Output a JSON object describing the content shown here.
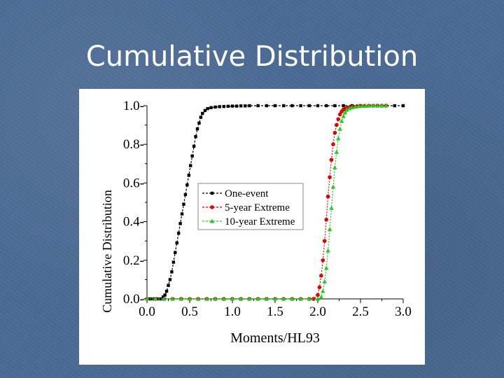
{
  "slide": {
    "title": "Cumulative Distribution"
  },
  "colors": {
    "background": "#4b6b95",
    "one_event": "#000000",
    "five_year": "#e00000",
    "ten_year": "#22cc22"
  },
  "chart_data": {
    "type": "line",
    "title": "",
    "xlabel": "Moments/HL93",
    "ylabel": "Cumulative Distribution",
    "xlim": [
      0.0,
      3.0
    ],
    "ylim": [
      0.0,
      1.0
    ],
    "xticks": [
      "0.0",
      "0.5",
      "1.0",
      "1.5",
      "2.0",
      "2.5",
      "3.0"
    ],
    "yticks": [
      "0.0",
      "0.2",
      "0.4",
      "0.6",
      "0.8",
      "1.0"
    ],
    "grid": false,
    "legend_position": "center",
    "series": [
      {
        "name": "One-event",
        "marker": "square",
        "color": "#000000",
        "x": [
          0.0,
          0.04,
          0.08,
          0.12,
          0.16,
          0.19,
          0.21,
          0.23,
          0.25,
          0.27,
          0.29,
          0.31,
          0.33,
          0.35,
          0.37,
          0.39,
          0.41,
          0.43,
          0.45,
          0.47,
          0.49,
          0.51,
          0.53,
          0.55,
          0.57,
          0.59,
          0.61,
          0.63,
          0.65,
          0.68,
          0.71,
          0.75,
          0.8,
          0.85,
          0.9,
          0.95,
          1.0,
          1.05,
          1.1,
          1.15,
          1.2,
          1.3,
          1.4,
          1.5,
          1.6,
          1.7,
          1.8,
          1.9,
          2.0,
          2.1,
          2.2,
          2.3,
          2.4,
          2.5,
          2.6,
          2.7,
          2.8,
          2.9,
          3.0
        ],
        "y": [
          0.0,
          0.0,
          0.0,
          0.0,
          0.0,
          0.01,
          0.02,
          0.04,
          0.07,
          0.1,
          0.14,
          0.19,
          0.24,
          0.29,
          0.34,
          0.39,
          0.44,
          0.49,
          0.54,
          0.59,
          0.64,
          0.69,
          0.74,
          0.79,
          0.84,
          0.88,
          0.91,
          0.94,
          0.96,
          0.975,
          0.985,
          0.99,
          0.993,
          0.995,
          0.996,
          0.997,
          0.998,
          0.998,
          0.999,
          0.999,
          1.0,
          1.0,
          1.0,
          1.0,
          1.0,
          1.0,
          1.0,
          1.0,
          1.0,
          1.0,
          1.0,
          1.0,
          1.0,
          1.0,
          1.0,
          1.0,
          1.0,
          1.0,
          1.0
        ]
      },
      {
        "name": "5-year Extreme",
        "marker": "circle",
        "color": "#e00000",
        "x": [
          0.0,
          0.1,
          0.2,
          0.3,
          0.4,
          0.5,
          0.6,
          0.7,
          0.8,
          0.9,
          1.0,
          1.1,
          1.2,
          1.3,
          1.4,
          1.5,
          1.6,
          1.7,
          1.8,
          1.9,
          1.95,
          2.0,
          2.02,
          2.04,
          2.06,
          2.08,
          2.1,
          2.12,
          2.14,
          2.16,
          2.18,
          2.2,
          2.22,
          2.24,
          2.26,
          2.28,
          2.3,
          2.32,
          2.35,
          2.38,
          2.42,
          2.46,
          2.5,
          2.55,
          2.6,
          2.65,
          2.7,
          2.75,
          2.8
        ],
        "y": [
          0.0,
          0.0,
          0.0,
          0.0,
          0.0,
          0.0,
          0.0,
          0.0,
          0.0,
          0.0,
          0.0,
          0.0,
          0.0,
          0.0,
          0.0,
          0.0,
          0.0,
          0.0,
          0.0,
          0.0,
          0.0,
          0.02,
          0.06,
          0.12,
          0.2,
          0.3,
          0.41,
          0.53,
          0.63,
          0.72,
          0.8,
          0.86,
          0.9,
          0.93,
          0.955,
          0.97,
          0.98,
          0.985,
          0.99,
          0.993,
          0.995,
          0.997,
          0.998,
          0.999,
          1.0,
          1.0,
          1.0,
          1.0,
          1.0
        ]
      },
      {
        "name": "10-year Extreme",
        "marker": "triangle",
        "color": "#22cc22",
        "x": [
          0.0,
          0.1,
          0.2,
          0.3,
          0.4,
          0.5,
          0.6,
          0.7,
          0.8,
          0.9,
          1.0,
          1.1,
          1.2,
          1.3,
          1.4,
          1.5,
          1.6,
          1.7,
          1.8,
          1.9,
          2.0,
          2.04,
          2.06,
          2.08,
          2.1,
          2.12,
          2.14,
          2.16,
          2.18,
          2.2,
          2.22,
          2.24,
          2.26,
          2.28,
          2.3,
          2.32,
          2.34,
          2.37,
          2.4,
          2.44,
          2.48,
          2.52,
          2.56,
          2.6,
          2.65,
          2.7,
          2.75,
          2.8
        ],
        "y": [
          0.0,
          0.0,
          0.0,
          0.0,
          0.0,
          0.0,
          0.0,
          0.0,
          0.0,
          0.0,
          0.0,
          0.0,
          0.0,
          0.0,
          0.0,
          0.0,
          0.0,
          0.0,
          0.0,
          0.0,
          0.0,
          0.01,
          0.04,
          0.09,
          0.16,
          0.25,
          0.36,
          0.47,
          0.58,
          0.68,
          0.76,
          0.83,
          0.88,
          0.92,
          0.945,
          0.965,
          0.978,
          0.986,
          0.991,
          0.995,
          0.997,
          0.998,
          0.999,
          1.0,
          1.0,
          1.0,
          1.0,
          1.0
        ]
      }
    ]
  }
}
